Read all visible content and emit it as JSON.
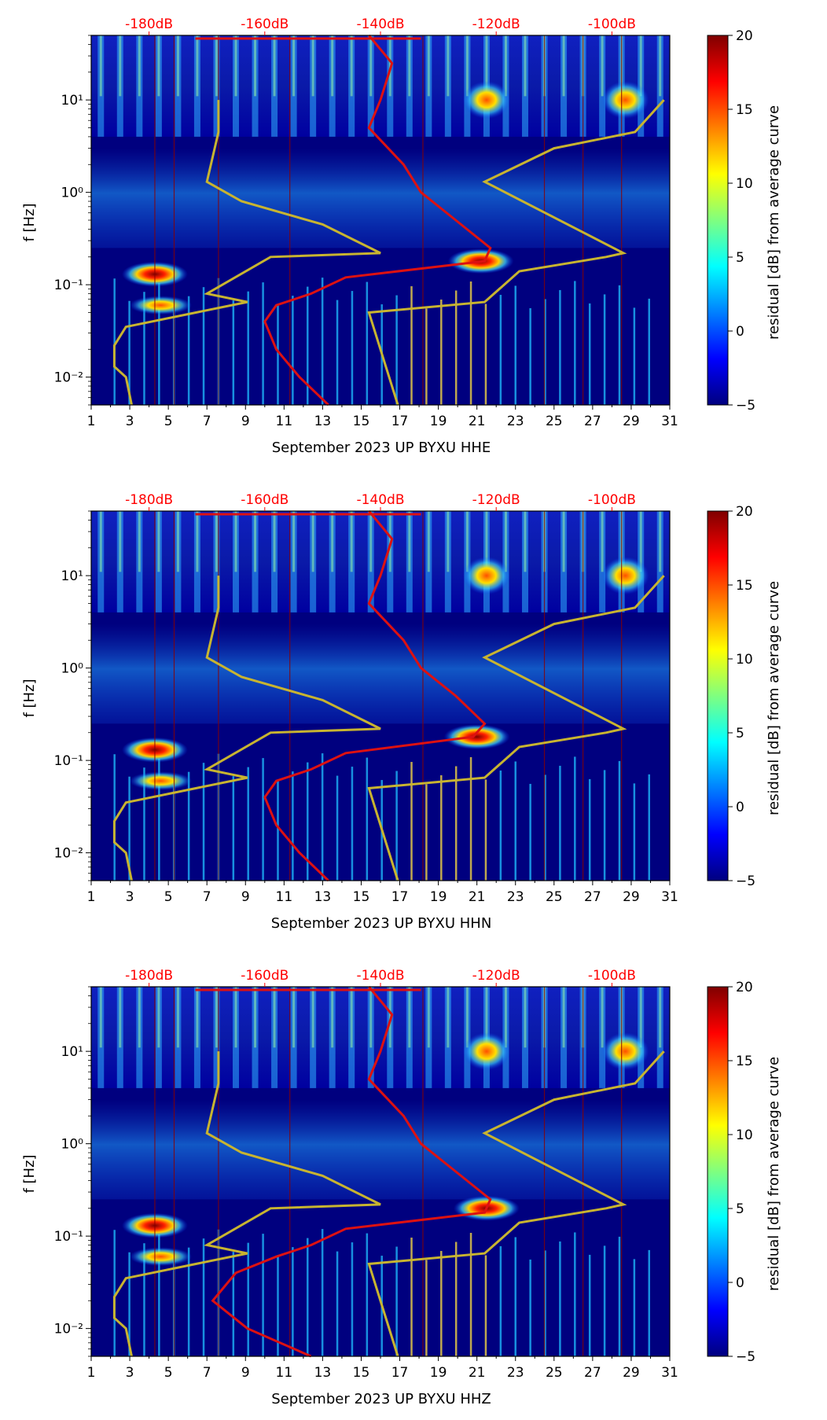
{
  "colorbar": {
    "label": "residual [dB] from average curve",
    "min": -5,
    "max": 20,
    "ticks": [
      "20",
      "15",
      "10",
      "5",
      "0",
      "−5"
    ],
    "colormap": "jet"
  },
  "colors": {
    "top_db_labels": "#ff0000",
    "psd_curve": "#dd1111",
    "model_curves": "#c8b430",
    "background": "#00007f"
  },
  "chart_data": [
    {
      "type": "heatmap",
      "title": "",
      "xlabel": "September 2023 UP BYXU  HHE",
      "ylabel": "f [Hz]",
      "x_ticks": [
        "1",
        "3",
        "5",
        "7",
        "9",
        "11",
        "13",
        "15",
        "17",
        "19",
        "21",
        "23",
        "25",
        "27",
        "29",
        "31"
      ],
      "y_ticks": [
        "10⁻²",
        "10⁻¹",
        "10⁰",
        "10¹"
      ],
      "top_axis_labels": [
        "-180dB",
        "-160dB",
        "-140dB",
        "-120dB",
        "-100dB"
      ],
      "xlim": [
        1,
        31
      ],
      "ylim_hz": [
        0.005,
        50
      ],
      "hotspots": [
        {
          "day": 4.3,
          "freq_hz": 0.13,
          "value_db": 20
        },
        {
          "day": 21.2,
          "freq_hz": 0.18,
          "value_db": 18
        },
        {
          "day": 21.5,
          "freq_hz": 10,
          "value_db": 17
        },
        {
          "day": 28.7,
          "freq_hz": 10,
          "value_db": 16
        }
      ],
      "psd_curve_db": {
        "freq_hz": [
          50,
          25,
          10,
          5,
          2,
          1,
          0.5,
          0.25,
          0.18,
          0.12,
          0.08,
          0.06,
          0.04,
          0.02,
          0.01,
          0.005
        ],
        "power_db": [
          -142,
          -138,
          -140,
          -142,
          -136,
          -133,
          -127,
          -121,
          -122,
          -146,
          -152,
          -158,
          -160,
          -158,
          -154,
          -149
        ]
      }
    },
    {
      "type": "heatmap",
      "title": "",
      "xlabel": "September 2023 UP BYXU  HHN",
      "ylabel": "f [Hz]",
      "x_ticks": [
        "1",
        "3",
        "5",
        "7",
        "9",
        "11",
        "13",
        "15",
        "17",
        "19",
        "21",
        "23",
        "25",
        "27",
        "29",
        "31"
      ],
      "y_ticks": [
        "10⁻²",
        "10⁻¹",
        "10⁰",
        "10¹"
      ],
      "top_axis_labels": [
        "-180dB",
        "-160dB",
        "-140dB",
        "-120dB",
        "-100dB"
      ],
      "xlim": [
        1,
        31
      ],
      "ylim_hz": [
        0.005,
        50
      ],
      "hotspots": [
        {
          "day": 4.3,
          "freq_hz": 0.13,
          "value_db": 20
        },
        {
          "day": 21.0,
          "freq_hz": 0.18,
          "value_db": 18
        },
        {
          "day": 21.5,
          "freq_hz": 10,
          "value_db": 17
        },
        {
          "day": 28.7,
          "freq_hz": 10,
          "value_db": 16
        }
      ],
      "psd_curve_db": {
        "freq_hz": [
          50,
          25,
          10,
          5,
          2,
          1,
          0.5,
          0.25,
          0.18,
          0.12,
          0.08,
          0.06,
          0.04,
          0.02,
          0.01,
          0.005
        ],
        "power_db": [
          -142,
          -138,
          -140,
          -142,
          -136,
          -133,
          -127,
          -122,
          -124,
          -146,
          -152,
          -158,
          -160,
          -158,
          -154,
          -149
        ]
      }
    },
    {
      "type": "heatmap",
      "title": "",
      "xlabel": "September 2023 UP BYXU  HHZ",
      "ylabel": "f [Hz]",
      "x_ticks": [
        "1",
        "3",
        "5",
        "7",
        "9",
        "11",
        "13",
        "15",
        "17",
        "19",
        "21",
        "23",
        "25",
        "27",
        "29",
        "31"
      ],
      "y_ticks": [
        "10⁻²",
        "10⁻¹",
        "10⁰",
        "10¹"
      ],
      "top_axis_labels": [
        "-180dB",
        "-160dB",
        "-140dB",
        "-120dB",
        "-100dB"
      ],
      "xlim": [
        1,
        31
      ],
      "ylim_hz": [
        0.005,
        50
      ],
      "hotspots": [
        {
          "day": 4.3,
          "freq_hz": 0.13,
          "value_db": 20
        },
        {
          "day": 21.5,
          "freq_hz": 0.2,
          "value_db": 18
        },
        {
          "day": 21.5,
          "freq_hz": 10,
          "value_db": 17
        },
        {
          "day": 28.7,
          "freq_hz": 10,
          "value_db": 16
        }
      ],
      "psd_curve_db": {
        "freq_hz": [
          50,
          25,
          10,
          5,
          2,
          1,
          0.5,
          0.25,
          0.18,
          0.12,
          0.08,
          0.06,
          0.04,
          0.02,
          0.01,
          0.005
        ],
        "power_db": [
          -142,
          -138,
          -140,
          -142,
          -136,
          -133,
          -127,
          -121,
          -122,
          -146,
          -152,
          -158,
          -165,
          -169,
          -163,
          -152
        ]
      }
    }
  ],
  "model_curves": {
    "nlnm": {
      "freq_hz": [
        10,
        4.5,
        1.3,
        0.8,
        0.45,
        0.22,
        0.2,
        0.08,
        0.065,
        0.035,
        0.022,
        0.013,
        0.01,
        0.005
      ],
      "power_db": [
        -168,
        -168,
        -170,
        -164,
        -150,
        -140,
        -159,
        -170,
        -163,
        -184,
        -186,
        -186,
        -184,
        -183
      ]
    },
    "nhnm": {
      "freq_hz": [
        10,
        4.5,
        3.0,
        1.3,
        0.22,
        0.2,
        0.14,
        0.065,
        0.05,
        0.005
      ],
      "power_db": [
        -91,
        -96,
        -110,
        -122,
        -98,
        -101,
        -116,
        -122,
        -142,
        -137
      ]
    }
  }
}
